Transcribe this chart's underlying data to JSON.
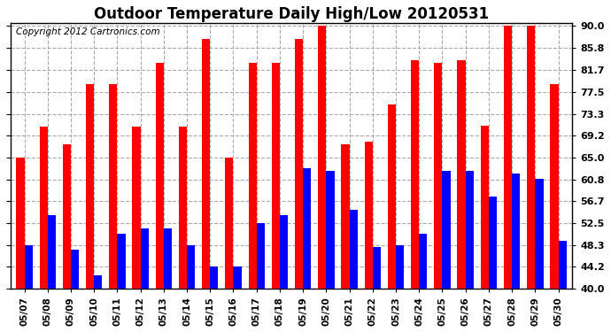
{
  "title": "Outdoor Temperature Daily High/Low 20120531",
  "copyright": "Copyright 2012 Cartronics.com",
  "dates": [
    "05/07",
    "05/08",
    "05/09",
    "05/10",
    "05/11",
    "05/12",
    "05/13",
    "05/14",
    "05/15",
    "05/16",
    "05/17",
    "05/18",
    "05/19",
    "05/20",
    "05/21",
    "05/22",
    "05/23",
    "05/24",
    "05/25",
    "05/26",
    "05/27",
    "05/28",
    "05/29",
    "05/30"
  ],
  "highs": [
    65.0,
    70.8,
    67.5,
    79.0,
    79.0,
    70.8,
    83.0,
    70.8,
    87.5,
    65.0,
    83.0,
    83.0,
    87.5,
    90.0,
    67.5,
    68.0,
    75.0,
    83.5,
    83.0,
    83.5,
    71.0,
    90.0,
    90.0,
    79.0
  ],
  "lows": [
    48.3,
    54.0,
    47.5,
    42.5,
    50.5,
    51.5,
    51.5,
    48.3,
    44.2,
    44.2,
    52.5,
    54.0,
    63.0,
    62.5,
    55.0,
    48.0,
    48.3,
    50.5,
    62.5,
    62.5,
    57.5,
    62.0,
    61.0,
    49.2
  ],
  "high_color": "#ff0000",
  "low_color": "#0000ff",
  "bg_color": "#ffffff",
  "grid_color": "#aaaaaa",
  "title_fontsize": 12,
  "copyright_fontsize": 7.5,
  "ytick_vals": [
    40.0,
    44.2,
    48.3,
    52.5,
    56.7,
    60.8,
    65.0,
    69.2,
    73.3,
    77.5,
    81.7,
    85.8,
    90.0
  ],
  "ytick_labels": [
    "40.0",
    "44.2",
    "48.3",
    "52.5",
    "56.7",
    "60.8",
    "65.0",
    "69.2",
    "73.3",
    "77.5",
    "81.7",
    "85.8",
    "90.0"
  ],
  "ymin": 40.0,
  "ymax": 90.5,
  "bar_width": 0.35
}
